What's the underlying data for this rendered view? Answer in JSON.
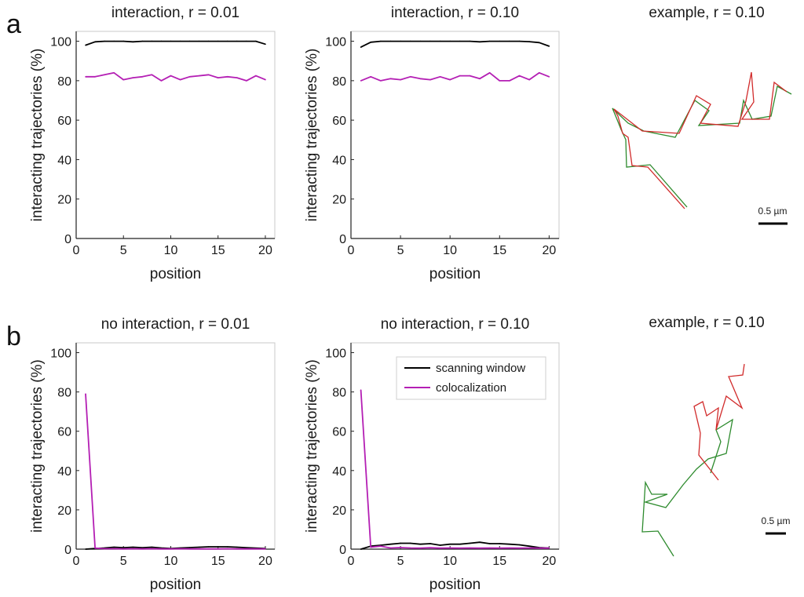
{
  "panel_labels": [
    "a",
    "b"
  ],
  "example_titles": [
    "example, r = 0.10",
    "example, r = 0.10"
  ],
  "scale_bar_label": "0.5 µm",
  "colors": {
    "scanning": "#000000",
    "coloc": "#b41fb4",
    "traj_green": "#2e8b2e",
    "traj_red": "#d12b2b"
  },
  "chart_data": [
    {
      "type": "line",
      "title": "interaction, r = 0.01",
      "xlabel": "position",
      "ylabel": "interacting trajectories (%)",
      "xlim": [
        0,
        21
      ],
      "ylim": [
        0,
        105
      ],
      "xticks": [
        0,
        5,
        10,
        15,
        20
      ],
      "yticks": [
        0,
        20,
        40,
        60,
        80,
        100
      ],
      "x": [
        1,
        2,
        3,
        4,
        5,
        6,
        7,
        8,
        9,
        10,
        11,
        12,
        13,
        14,
        15,
        16,
        17,
        18,
        19,
        20
      ],
      "series": [
        {
          "name": "scanning window",
          "color": "#000000",
          "values": [
            98,
            99.7,
            100,
            100,
            100,
            99.7,
            100,
            100,
            100,
            100,
            100,
            100,
            100,
            100,
            100,
            100,
            100,
            100,
            100,
            98.5
          ]
        },
        {
          "name": "colocalization",
          "color": "#b41fb4",
          "values": [
            82,
            82,
            83,
            84,
            80.5,
            81.5,
            82,
            83,
            80,
            82.5,
            80.5,
            82,
            82.5,
            83,
            81.5,
            82,
            81.5,
            80,
            82.5,
            80.5
          ]
        }
      ]
    },
    {
      "type": "line",
      "title": "interaction, r = 0.10",
      "xlabel": "position",
      "ylabel": "interacting trajectories (%)",
      "xlim": [
        0,
        21
      ],
      "ylim": [
        0,
        105
      ],
      "xticks": [
        0,
        5,
        10,
        15,
        20
      ],
      "yticks": [
        0,
        20,
        40,
        60,
        80,
        100
      ],
      "x": [
        1,
        2,
        3,
        4,
        5,
        6,
        7,
        8,
        9,
        10,
        11,
        12,
        13,
        14,
        15,
        16,
        17,
        18,
        19,
        20
      ],
      "series": [
        {
          "name": "scanning window",
          "color": "#000000",
          "values": [
            97,
            99.5,
            100,
            100,
            100,
            100,
            100,
            100,
            100,
            100,
            100,
            100,
            99.7,
            100,
            100,
            100,
            100,
            99.8,
            99.3,
            97.5
          ]
        },
        {
          "name": "colocalization",
          "color": "#b41fb4",
          "values": [
            80,
            82,
            80,
            81,
            80.5,
            82,
            81,
            80.5,
            82,
            80.5,
            82.5,
            82.5,
            81,
            84,
            80,
            80,
            82.5,
            80.5,
            84,
            82
          ]
        }
      ]
    },
    {
      "type": "line",
      "title": "no interaction, r = 0.01",
      "xlabel": "position",
      "ylabel": "interacting trajectories (%)",
      "xlim": [
        0,
        21
      ],
      "ylim": [
        0,
        105
      ],
      "xticks": [
        0,
        5,
        10,
        15,
        20
      ],
      "yticks": [
        0,
        20,
        40,
        60,
        80,
        100
      ],
      "x": [
        1,
        2,
        3,
        4,
        5,
        6,
        7,
        8,
        9,
        10,
        11,
        12,
        13,
        14,
        15,
        16,
        17,
        18,
        19,
        20
      ],
      "series": [
        {
          "name": "scanning window",
          "color": "#000000",
          "values": [
            0,
            0.3,
            0.6,
            1,
            0.7,
            1,
            0.7,
            1,
            0.6,
            0.3,
            0.6,
            0.8,
            1,
            1.2,
            1.2,
            1.2,
            1,
            0.7,
            0.5,
            0.3
          ]
        },
        {
          "name": "colocalization",
          "color": "#b41fb4",
          "values": [
            79,
            0.5,
            0.2,
            0.2,
            0.1,
            0.2,
            0.1,
            0.2,
            0.1,
            0.1,
            0.2,
            0.1,
            0.1,
            0.1,
            0.1,
            0.2,
            0.1,
            0.1,
            0.1,
            0.1
          ]
        }
      ]
    },
    {
      "type": "line",
      "title": "no interaction, r = 0.10",
      "xlabel": "position",
      "ylabel": "interacting trajectories (%)",
      "xlim": [
        0,
        21
      ],
      "ylim": [
        0,
        105
      ],
      "xticks": [
        0,
        5,
        10,
        15,
        20
      ],
      "yticks": [
        0,
        20,
        40,
        60,
        80,
        100
      ],
      "legend": {
        "position": "top-right",
        "entries": [
          "scanning window",
          "colocalization"
        ]
      },
      "x": [
        1,
        2,
        3,
        4,
        5,
        6,
        7,
        8,
        9,
        10,
        11,
        12,
        13,
        14,
        15,
        16,
        17,
        18,
        19,
        20
      ],
      "series": [
        {
          "name": "scanning window",
          "color": "#000000",
          "values": [
            0,
            1.5,
            2,
            2.5,
            3,
            3,
            2.5,
            2.8,
            2,
            2.5,
            2.5,
            3,
            3.5,
            2.8,
            2.8,
            2.5,
            2.2,
            1.5,
            0.8,
            0.5
          ]
        },
        {
          "name": "colocalization",
          "color": "#b41fb4",
          "values": [
            81,
            1,
            1.5,
            0.6,
            0.8,
            0.6,
            0.5,
            0.7,
            0.5,
            0.6,
            0.5,
            0.6,
            0.5,
            0.6,
            0.5,
            0.6,
            0.5,
            0.6,
            0.5,
            0.5
          ]
        }
      ]
    }
  ]
}
